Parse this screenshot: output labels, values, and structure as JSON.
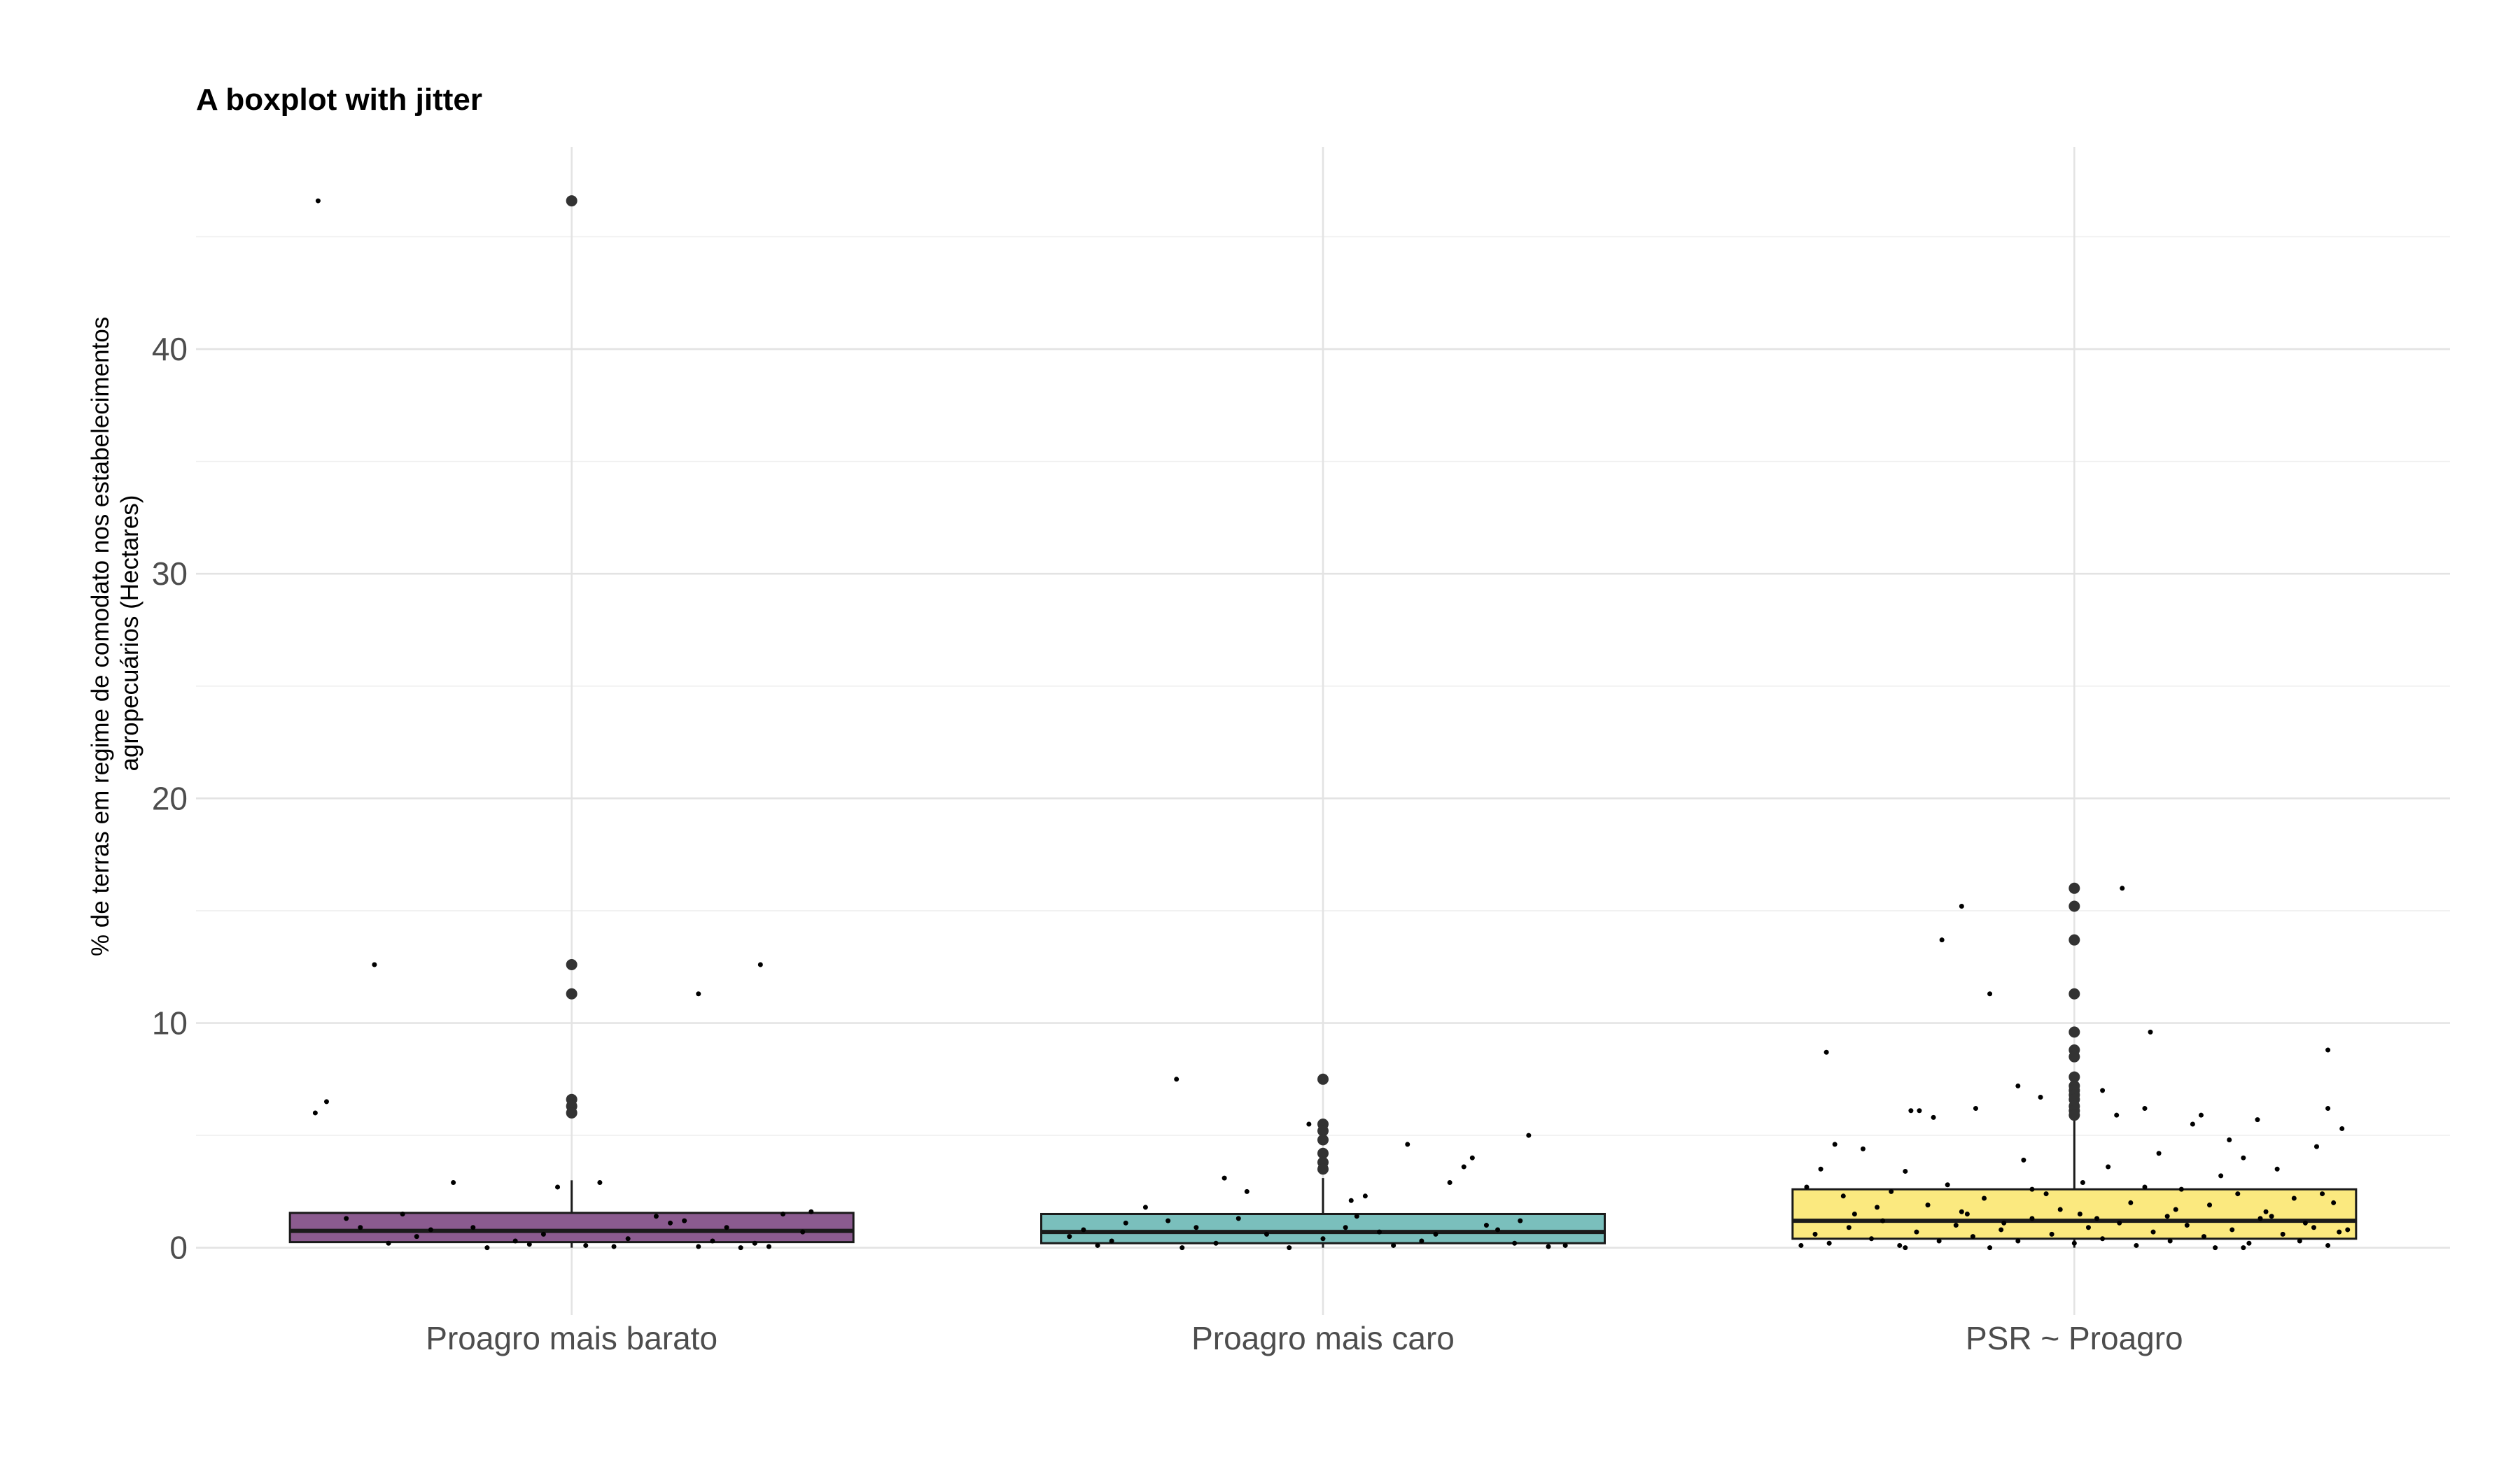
{
  "chart_data": {
    "type": "boxplot",
    "title": "A boxplot with jitter",
    "ylabel_lines": [
      "% de terras em regime de comodato nos estabelecimentos",
      "agropecuários (Hectares)"
    ],
    "xlabel": "",
    "categories": [
      "Proagro mais barato",
      "Proagro mais caro",
      "PSR ~ Proagro"
    ],
    "ylim": [
      -3,
      49
    ],
    "yticks": [
      0,
      10,
      20,
      30,
      40
    ],
    "y_minor_ticks": [
      5,
      15,
      25,
      35,
      45
    ],
    "grid": true,
    "legend": "none",
    "colors": {
      "fills": [
        "#8b5b8f",
        "#7abfbc",
        "#fbe97f"
      ],
      "box_stroke": "#1a1a1a",
      "outlier": "#333333",
      "jitter": "#000000",
      "grid": "#e3e3e3"
    },
    "boxes": [
      {
        "name": "Proagro mais barato",
        "q1": 0.25,
        "median": 0.75,
        "q3": 1.55,
        "whisker_low": 0.0,
        "whisker_high": 3.0,
        "outliers": [
          46.6,
          12.6,
          11.3,
          6.6,
          6.3,
          6.0
        ],
        "jitter": [
          [
            -0.9,
            46.6
          ],
          [
            -0.7,
            12.6
          ],
          [
            0.45,
            11.3
          ],
          [
            0.67,
            12.6
          ],
          [
            -0.91,
            6.0
          ],
          [
            -0.87,
            6.5
          ],
          [
            -0.42,
            2.9
          ],
          [
            0.1,
            2.9
          ],
          [
            -0.05,
            2.7
          ],
          [
            -0.8,
            1.3
          ],
          [
            -0.6,
            1.5
          ],
          [
            -0.5,
            0.8
          ],
          [
            -0.35,
            0.9
          ],
          [
            -0.2,
            0.3
          ],
          [
            -0.1,
            0.6
          ],
          [
            0.05,
            0.1
          ],
          [
            0.2,
            0.4
          ],
          [
            0.3,
            1.4
          ],
          [
            0.4,
            1.2
          ],
          [
            0.5,
            0.3
          ],
          [
            0.55,
            0.9
          ],
          [
            0.65,
            0.2
          ],
          [
            0.75,
            1.5
          ],
          [
            0.85,
            1.6
          ],
          [
            -0.65,
            0.2
          ],
          [
            -0.3,
            0.0
          ],
          [
            0.15,
            0.05
          ],
          [
            0.6,
            0.0
          ],
          [
            -0.55,
            0.5
          ],
          [
            0.35,
            1.1
          ],
          [
            0.82,
            0.7
          ],
          [
            -0.15,
            0.15
          ],
          [
            0.45,
            0.05
          ],
          [
            -0.75,
            0.9
          ],
          [
            0.7,
            0.05
          ]
        ]
      },
      {
        "name": "Proagro mais caro",
        "q1": 0.2,
        "median": 0.7,
        "q3": 1.5,
        "whisker_low": 0.0,
        "whisker_high": 3.1,
        "outliers": [
          7.5,
          5.5,
          5.2,
          4.8,
          4.2,
          3.8,
          3.5
        ],
        "jitter": [
          [
            -0.52,
            7.5
          ],
          [
            -0.35,
            3.1
          ],
          [
            -0.27,
            2.5
          ],
          [
            -0.05,
            5.5
          ],
          [
            0.1,
            2.1
          ],
          [
            0.15,
            2.3
          ],
          [
            0.3,
            4.6
          ],
          [
            0.45,
            2.9
          ],
          [
            0.5,
            3.6
          ],
          [
            0.53,
            4.0
          ],
          [
            0.73,
            5.0
          ],
          [
            -0.9,
            0.5
          ],
          [
            -0.85,
            0.8
          ],
          [
            -0.8,
            0.1
          ],
          [
            -0.7,
            1.1
          ],
          [
            -0.63,
            1.8
          ],
          [
            -0.55,
            1.2
          ],
          [
            -0.45,
            0.9
          ],
          [
            -0.38,
            0.2
          ],
          [
            -0.3,
            1.3
          ],
          [
            -0.2,
            0.6
          ],
          [
            -0.12,
            0.0
          ],
          [
            0.0,
            0.4
          ],
          [
            0.08,
            0.9
          ],
          [
            0.2,
            0.7
          ],
          [
            0.25,
            0.1
          ],
          [
            0.35,
            0.3
          ],
          [
            0.4,
            0.6
          ],
          [
            0.58,
            1.0
          ],
          [
            0.62,
            0.8
          ],
          [
            0.68,
            0.2
          ],
          [
            0.8,
            0.05
          ],
          [
            0.86,
            0.1
          ],
          [
            -0.75,
            0.3
          ],
          [
            -0.5,
            0.0
          ],
          [
            0.12,
            1.4
          ],
          [
            0.7,
            1.2
          ]
        ]
      },
      {
        "name": "PSR ~ Proagro",
        "q1": 0.4,
        "median": 1.2,
        "q3": 2.6,
        "whisker_low": 0.0,
        "whisker_high": 5.8,
        "outliers": [
          16.0,
          15.2,
          13.7,
          11.3,
          9.6,
          8.8,
          8.5,
          7.6,
          7.2,
          7.0,
          6.8,
          6.6,
          6.3,
          6.1,
          5.9
        ],
        "jitter": [
          [
            -0.4,
            15.2
          ],
          [
            -0.47,
            13.7
          ],
          [
            -0.3,
            11.3
          ],
          [
            0.17,
            16.0
          ],
          [
            0.27,
            9.6
          ],
          [
            0.45,
            5.9
          ],
          [
            0.65,
            5.7
          ],
          [
            0.9,
            8.8
          ],
          [
            -0.88,
            8.7
          ],
          [
            -0.85,
            4.6
          ],
          [
            -0.75,
            4.4
          ],
          [
            -0.58,
            6.1
          ],
          [
            -0.55,
            6.1
          ],
          [
            -0.5,
            5.8
          ],
          [
            -0.35,
            6.2
          ],
          [
            -0.2,
            7.2
          ],
          [
            -0.12,
            6.7
          ],
          [
            0.15,
            5.9
          ],
          [
            0.1,
            7.0
          ],
          [
            0.25,
            6.2
          ],
          [
            0.3,
            4.2
          ],
          [
            0.42,
            5.5
          ],
          [
            0.55,
            4.8
          ],
          [
            0.6,
            4.0
          ],
          [
            0.86,
            4.5
          ],
          [
            0.9,
            6.2
          ],
          [
            0.95,
            5.3
          ],
          [
            -0.95,
            2.7
          ],
          [
            -0.9,
            3.5
          ],
          [
            -0.82,
            2.3
          ],
          [
            -0.7,
            1.8
          ],
          [
            -0.65,
            2.5
          ],
          [
            -0.6,
            3.4
          ],
          [
            -0.52,
            1.9
          ],
          [
            -0.45,
            2.8
          ],
          [
            -0.38,
            1.5
          ],
          [
            -0.32,
            2.2
          ],
          [
            -0.25,
            1.1
          ],
          [
            -0.18,
            3.9
          ],
          [
            -0.1,
            2.4
          ],
          [
            -0.05,
            1.7
          ],
          [
            0.03,
            2.9
          ],
          [
            0.08,
            1.3
          ],
          [
            0.12,
            3.6
          ],
          [
            0.2,
            2.0
          ],
          [
            0.33,
            1.4
          ],
          [
            0.38,
            2.6
          ],
          [
            0.48,
            1.9
          ],
          [
            0.52,
            3.2
          ],
          [
            0.58,
            2.4
          ],
          [
            0.68,
            1.6
          ],
          [
            0.72,
            3.5
          ],
          [
            0.78,
            2.2
          ],
          [
            0.82,
            1.1
          ],
          [
            0.92,
            2.0
          ],
          [
            -0.92,
            0.6
          ],
          [
            -0.87,
            0.2
          ],
          [
            -0.8,
            0.9
          ],
          [
            -0.72,
            0.4
          ],
          [
            -0.68,
            1.2
          ],
          [
            -0.62,
            0.1
          ],
          [
            -0.56,
            0.7
          ],
          [
            -0.48,
            0.3
          ],
          [
            -0.42,
            1.0
          ],
          [
            -0.36,
            0.5
          ],
          [
            -0.3,
            0.0
          ],
          [
            -0.26,
            0.8
          ],
          [
            -0.2,
            0.3
          ],
          [
            -0.15,
            1.3
          ],
          [
            -0.08,
            0.6
          ],
          [
            0.0,
            0.2
          ],
          [
            0.05,
            0.9
          ],
          [
            0.1,
            0.4
          ],
          [
            0.16,
            1.1
          ],
          [
            0.22,
            0.1
          ],
          [
            0.28,
            0.7
          ],
          [
            0.34,
            0.3
          ],
          [
            0.4,
            1.0
          ],
          [
            0.46,
            0.5
          ],
          [
            0.5,
            0.0
          ],
          [
            0.56,
            0.8
          ],
          [
            0.62,
            0.2
          ],
          [
            0.66,
            1.3
          ],
          [
            0.74,
            0.6
          ],
          [
            0.8,
            0.3
          ],
          [
            0.85,
            0.9
          ],
          [
            0.9,
            0.1
          ],
          [
            0.94,
            0.7
          ],
          [
            -0.78,
            1.5
          ],
          [
            -0.4,
            1.6
          ],
          [
            0.02,
            1.5
          ],
          [
            0.36,
            1.7
          ],
          [
            0.7,
            1.4
          ],
          [
            -0.15,
            2.6
          ],
          [
            0.25,
            2.7
          ],
          [
            -0.6,
            0.0
          ],
          [
            0.6,
            0.0
          ],
          [
            0.88,
            2.4
          ],
          [
            -0.97,
            0.1
          ],
          [
            0.97,
            0.8
          ]
        ]
      }
    ]
  }
}
